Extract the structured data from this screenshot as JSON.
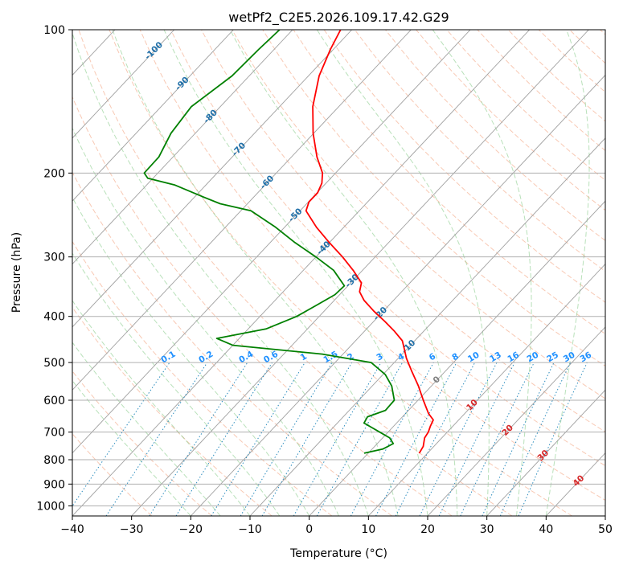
{
  "chart_data": {
    "type": "line",
    "title": "wetPf2_C2E5.2026.109.17.42.G29",
    "xlabel": "Temperature (°C)",
    "ylabel": "Pressure (hPa)",
    "xlim": [
      -40,
      50
    ],
    "ylim": [
      1050,
      100
    ],
    "yscale": "log",
    "grid": true,
    "x_ticks": [
      -40,
      -30,
      -20,
      -10,
      0,
      10,
      20,
      30,
      40,
      50
    ],
    "y_ticks": [
      100,
      200,
      300,
      400,
      500,
      600,
      700,
      800,
      900,
      1000
    ],
    "colors": {
      "temperature": "#ff0000",
      "dewpoint": "#008000",
      "isotherm": "#a0a0a0",
      "dry_adiabat": "#f4a582",
      "moist_adiabat": "#74c476",
      "mixing_ratio": "#2b8cbe",
      "label_negative": "#1f6fa8",
      "label_mixing": "#1e90ff",
      "label_positive": "#d62728",
      "label_zero": "#808080"
    },
    "isotherm_labels": [
      "-100",
      "-90",
      "-80",
      "-70",
      "-60",
      "-50",
      "-40",
      "-30",
      "-20",
      "-10",
      "0",
      "10",
      "20",
      "30",
      "40"
    ],
    "mixing_ratio_labels": [
      "0.1",
      "0.2",
      "0.4",
      "0.6",
      "1",
      "1.5",
      "2",
      "3",
      "4",
      "6",
      "8",
      "10",
      "13",
      "16",
      "20",
      "25",
      "30",
      "36"
    ],
    "series": [
      {
        "key": "temperature",
        "points": [
          {
            "p": 100,
            "t": -71.9
          },
          {
            "p": 110,
            "t": -70.5
          },
          {
            "p": 125,
            "t": -68.2
          },
          {
            "p": 145,
            "t": -64.4
          },
          {
            "p": 165,
            "t": -60.1
          },
          {
            "p": 185,
            "t": -55.7
          },
          {
            "p": 200,
            "t": -52.2
          },
          {
            "p": 210,
            "t": -50.7
          },
          {
            "p": 220,
            "t": -49.9
          },
          {
            "p": 230,
            "t": -49.9
          },
          {
            "p": 240,
            "t": -49.0
          },
          {
            "p": 260,
            "t": -44.6
          },
          {
            "p": 280,
            "t": -40.0
          },
          {
            "p": 300,
            "t": -35.5
          },
          {
            "p": 320,
            "t": -31.6
          },
          {
            "p": 340,
            "t": -28.2
          },
          {
            "p": 355,
            "t": -27.1
          },
          {
            "p": 370,
            "t": -25.0
          },
          {
            "p": 390,
            "t": -21.6
          },
          {
            "p": 410,
            "t": -18.1
          },
          {
            "p": 430,
            "t": -14.9
          },
          {
            "p": 450,
            "t": -12.1
          },
          {
            "p": 470,
            "t": -10.3
          },
          {
            "p": 490,
            "t": -8.6
          },
          {
            "p": 520,
            "t": -5.8
          },
          {
            "p": 560,
            "t": -2.2
          },
          {
            "p": 600,
            "t": 0.9
          },
          {
            "p": 640,
            "t": 3.9
          },
          {
            "p": 660,
            "t": 5.7
          },
          {
            "p": 680,
            "t": 6.2
          },
          {
            "p": 700,
            "t": 6.8
          },
          {
            "p": 720,
            "t": 7.1
          },
          {
            "p": 750,
            "t": 8.2
          },
          {
            "p": 775,
            "t": 8.6
          }
        ]
      },
      {
        "key": "dewpoint",
        "points": [
          {
            "p": 100,
            "t": -82.2
          },
          {
            "p": 110,
            "t": -82.6
          },
          {
            "p": 125,
            "t": -82.9
          },
          {
            "p": 145,
            "t": -84.9
          },
          {
            "p": 165,
            "t": -84.1
          },
          {
            "p": 185,
            "t": -82.4
          },
          {
            "p": 200,
            "t": -82.3
          },
          {
            "p": 205,
            "t": -80.9
          },
          {
            "p": 212,
            "t": -75.2
          },
          {
            "p": 225,
            "t": -68.3
          },
          {
            "p": 232,
            "t": -64.6
          },
          {
            "p": 240,
            "t": -58.3
          },
          {
            "p": 260,
            "t": -51.5
          },
          {
            "p": 280,
            "t": -45.8
          },
          {
            "p": 300,
            "t": -40.0
          },
          {
            "p": 320,
            "t": -34.9
          },
          {
            "p": 345,
            "t": -30.6
          },
          {
            "p": 360,
            "t": -30.8
          },
          {
            "p": 380,
            "t": -32.3
          },
          {
            "p": 400,
            "t": -33.8
          },
          {
            "p": 425,
            "t": -37.0
          },
          {
            "p": 445,
            "t": -43.8
          },
          {
            "p": 460,
            "t": -40.0
          },
          {
            "p": 480,
            "t": -23.5
          },
          {
            "p": 500,
            "t": -13.9
          },
          {
            "p": 530,
            "t": -9.6
          },
          {
            "p": 560,
            "t": -6.7
          },
          {
            "p": 600,
            "t": -4.0
          },
          {
            "p": 630,
            "t": -3.9
          },
          {
            "p": 650,
            "t": -5.9
          },
          {
            "p": 670,
            "t": -5.5
          },
          {
            "p": 700,
            "t": -1.4
          },
          {
            "p": 720,
            "t": 1.2
          },
          {
            "p": 740,
            "t": 2.7
          },
          {
            "p": 760,
            "t": 1.8
          },
          {
            "p": 775,
            "t": -0.7
          }
        ]
      }
    ]
  }
}
